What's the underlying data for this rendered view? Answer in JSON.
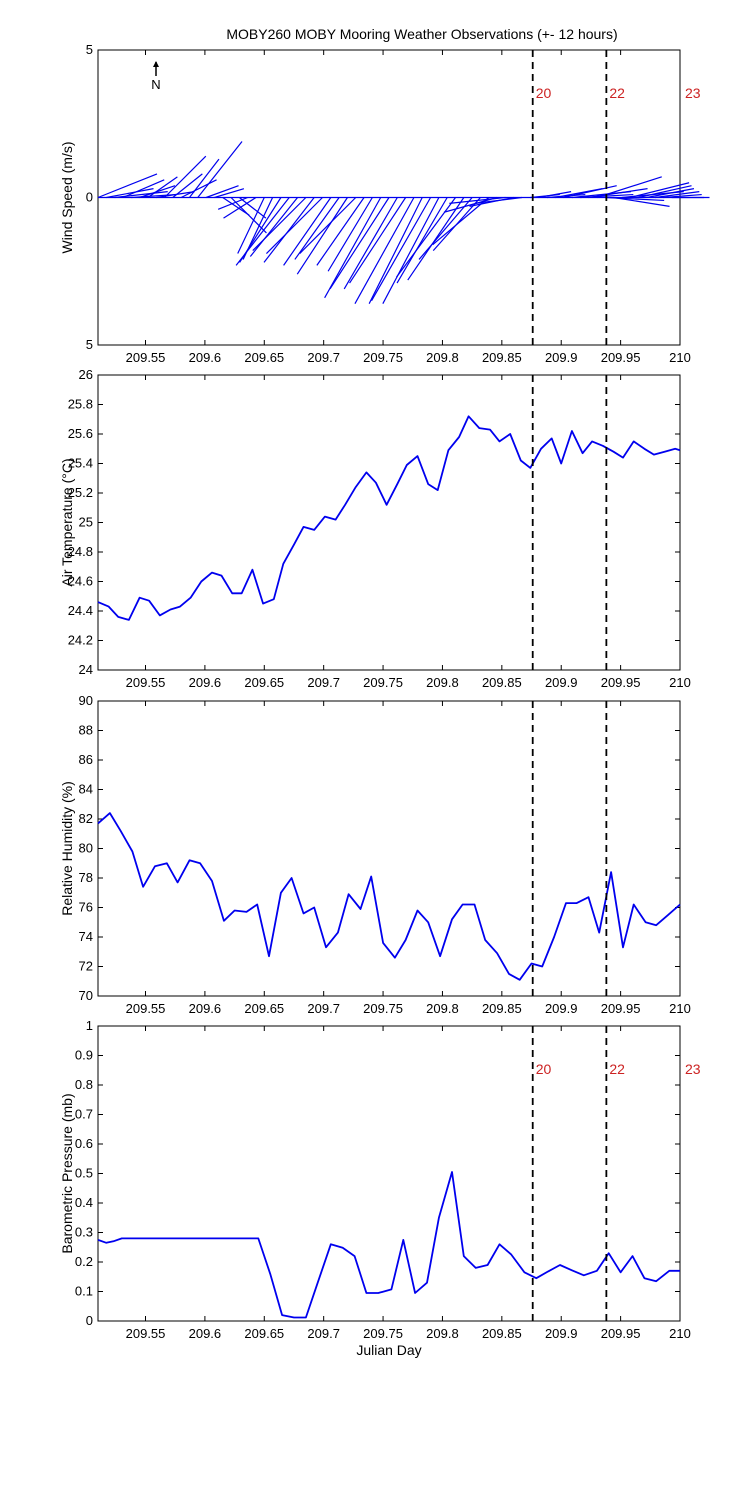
{
  "title": "MOBY260 MOBY Mooring Weather Observations (+- 12 hours)",
  "colors": {
    "series": "#0000ee",
    "marker_text": "#cc2222",
    "axes": "#000000"
  },
  "x_ticks": [
    209.55,
    209.6,
    209.65,
    209.7,
    209.75,
    209.8,
    209.85,
    209.9,
    209.95,
    210
  ],
  "x_tick_labels": [
    "209.55",
    "209.6",
    "209.65",
    "209.7",
    "209.75",
    "209.8",
    "209.85",
    "209.9",
    "209.95",
    "210"
  ],
  "xlim": [
    209.51,
    210
  ],
  "event_lines": [
    209.876,
    209.938
  ],
  "time_markers": [
    {
      "x": 209.876,
      "label": "20"
    },
    {
      "x": 209.938,
      "label": "22"
    },
    {
      "x": 210.0,
      "label": "23"
    }
  ],
  "north_label": "N",
  "chart_data": [
    {
      "type": "vector",
      "ylabel": "Wind Speed (m/s)",
      "xlabel": "",
      "ylim": [
        -5,
        5
      ],
      "y_ticks": [
        -5,
        0,
        5
      ],
      "y_tick_labels": [
        "5",
        "0",
        "5"
      ],
      "grid": false,
      "x": [
        209.51,
        209.517,
        209.524,
        209.531,
        209.538,
        209.545,
        209.552,
        209.559,
        209.566,
        209.573,
        209.58,
        209.587,
        209.594,
        209.601,
        209.608,
        209.615,
        209.622,
        209.629,
        209.636,
        209.643,
        209.65,
        209.657,
        209.664,
        209.671,
        209.678,
        209.685,
        209.692,
        209.699,
        209.706,
        209.713,
        209.72,
        209.727,
        209.734,
        209.741,
        209.748,
        209.755,
        209.762,
        209.769,
        209.776,
        209.783,
        209.79,
        209.797,
        209.804,
        209.811,
        209.818,
        209.825,
        209.832,
        209.839,
        209.846,
        209.853,
        209.86,
        209.867,
        209.874,
        209.881,
        209.888,
        209.895,
        209.902,
        209.909,
        209.916,
        209.923,
        209.93,
        209.937,
        209.944,
        209.951,
        209.958,
        209.965,
        209.972,
        209.979,
        209.986,
        209.993,
        210.0
      ],
      "u": [
        2.0,
        1.6,
        1.8,
        1.4,
        1.5,
        1.2,
        1.0,
        1.3,
        1.4,
        1.0,
        1.2,
        1.0,
        1.5,
        1.1,
        1.0,
        0.9,
        1.2,
        0.9,
        -1.0,
        -1.1,
        -0.9,
        -1.0,
        -1.4,
        -1.8,
        -1.6,
        -1.8,
        -1.7,
        -1.9,
        -1.6,
        -1.5,
        -1.7,
        -1.9,
        -1.6,
        -1.5,
        -1.9,
        -2.0,
        -1.8,
        -1.9,
        -2.0,
        -1.8,
        -2.0,
        -1.9,
        -1.7,
        -2.0,
        -1.9,
        -1.8,
        -1.6,
        -1.9,
        -1.8,
        -1.9,
        -1.5,
        -1.6,
        1.0,
        1.1,
        1.3,
        1.6,
        1.8,
        2.0,
        1.8,
        2.0,
        2.2,
        2.0,
        1.9,
        2.1,
        2.0,
        1.8,
        1.6,
        1.5,
        1.3,
        1.1,
        1.0
      ],
      "v": [
        0.8,
        0.3,
        0.2,
        0.6,
        0.1,
        0.4,
        0.7,
        0.2,
        1.4,
        0.8,
        0.6,
        1.3,
        1.9,
        0.4,
        0.3,
        -0.6,
        -1.2,
        -0.7,
        -0.4,
        -0.7,
        -1.9,
        -2.1,
        -2.2,
        -2.3,
        -2.0,
        -1.8,
        -2.2,
        -1.9,
        -2.3,
        -2.1,
        -2.6,
        -1.9,
        -2.3,
        -2.5,
        -3.4,
        -3.1,
        -3.1,
        -2.9,
        -3.6,
        -3.6,
        -3.5,
        -3.6,
        -2.9,
        -2.7,
        -2.8,
        -2.1,
        -1.8,
        -1.6,
        -0.5,
        -0.2,
        -0.3,
        -0.2,
        0.1,
        0.2,
        0.1,
        0.3,
        0.4,
        0.2,
        0.1,
        0.3,
        0.7,
        -0.1,
        -0.3,
        0.2,
        0.5,
        0.4,
        0.3,
        0.2,
        0.1,
        0.0,
        0.0
      ]
    },
    {
      "type": "line",
      "ylabel": "Air Temperature (°C)",
      "xlabel": "",
      "ylim": [
        24,
        26
      ],
      "y_ticks": [
        24,
        24.2,
        24.4,
        24.6,
        24.8,
        25,
        25.2,
        25.4,
        25.6,
        25.8,
        26
      ],
      "y_tick_labels": [
        "24",
        "24.2",
        "24.4",
        "24.6",
        "24.8",
        "25",
        "25.2",
        "25.4",
        "25.6",
        "25.8",
        "26"
      ],
      "grid": false,
      "series": [
        {
          "x": [
            209.51,
            209.519,
            209.527,
            209.536,
            209.545,
            209.553,
            209.562,
            209.571,
            209.579,
            209.588,
            209.597,
            209.606,
            209.614,
            209.623,
            209.631,
            209.64,
            209.649,
            209.658,
            209.666,
            209.675,
            209.683,
            209.692,
            209.701,
            209.71,
            209.718,
            209.727,
            209.736,
            209.744,
            209.753,
            209.762,
            209.77,
            209.779,
            209.788,
            209.796,
            209.805,
            209.814,
            209.822,
            209.831,
            209.84,
            209.848,
            209.857,
            209.866,
            209.874,
            209.883,
            209.892,
            209.9,
            209.909,
            209.918,
            209.926,
            209.935,
            209.944,
            209.952,
            209.961,
            209.97,
            209.978,
            209.987,
            209.996,
            210.0
          ],
          "values": [
            24.46,
            24.43,
            24.36,
            24.34,
            24.49,
            24.47,
            24.37,
            24.41,
            24.43,
            24.49,
            24.6,
            24.66,
            24.64,
            24.52,
            24.52,
            24.68,
            24.45,
            24.48,
            24.72,
            24.85,
            24.97,
            24.95,
            25.04,
            25.02,
            25.12,
            25.24,
            25.34,
            25.27,
            25.12,
            25.26,
            25.39,
            25.45,
            25.26,
            25.22,
            25.49,
            25.58,
            25.72,
            25.64,
            25.63,
            25.55,
            25.6,
            25.42,
            25.37,
            25.5,
            25.57,
            25.4,
            25.62,
            25.47,
            25.55,
            25.52,
            25.48,
            25.44,
            25.55,
            25.5,
            25.46,
            25.48,
            25.5,
            25.49
          ]
        }
      ]
    },
    {
      "type": "line",
      "ylabel": "Relative Humidity (%)",
      "xlabel": "",
      "ylim": [
        70,
        90
      ],
      "y_ticks": [
        70,
        72,
        74,
        76,
        78,
        80,
        82,
        84,
        86,
        88,
        90
      ],
      "y_tick_labels": [
        "70",
        "72",
        "74",
        "76",
        "78",
        "80",
        "82",
        "84",
        "86",
        "88",
        "90"
      ],
      "grid": false,
      "series": [
        {
          "x": [
            209.51,
            209.52,
            209.529,
            209.539,
            209.548,
            209.558,
            209.568,
            209.577,
            209.587,
            209.596,
            209.606,
            209.616,
            209.625,
            209.635,
            209.644,
            209.654,
            209.664,
            209.673,
            209.683,
            209.692,
            209.702,
            209.712,
            209.721,
            209.731,
            209.74,
            209.75,
            209.76,
            209.769,
            209.779,
            209.788,
            209.798,
            209.808,
            209.817,
            209.827,
            209.836,
            209.846,
            209.856,
            209.865,
            209.875,
            209.884,
            209.894,
            209.904,
            209.913,
            209.923,
            209.932,
            209.942,
            209.952,
            209.961,
            209.971,
            209.98,
            209.99,
            210.0
          ],
          "values": [
            81.7,
            82.4,
            81.2,
            79.8,
            77.4,
            78.8,
            79.0,
            77.7,
            79.2,
            79.0,
            77.8,
            75.1,
            75.8,
            75.7,
            76.2,
            72.7,
            77.0,
            78.0,
            75.6,
            76.0,
            73.3,
            74.3,
            76.9,
            75.9,
            78.1,
            73.6,
            72.6,
            73.8,
            75.8,
            75.0,
            72.7,
            75.2,
            76.2,
            76.2,
            73.8,
            72.9,
            71.5,
            71.1,
            72.2,
            72.0,
            74.0,
            76.3,
            76.3,
            76.7,
            74.3,
            78.4,
            73.3,
            76.2,
            75.0,
            74.8,
            75.5,
            76.2
          ]
        }
      ]
    },
    {
      "type": "line",
      "ylabel": "Barometric Pressure (mb)",
      "xlabel": "Julian Day",
      "ylim": [
        0,
        1
      ],
      "y_ticks": [
        0,
        0.1,
        0.2,
        0.3,
        0.4,
        0.5,
        0.6,
        0.7,
        0.8,
        0.9,
        1
      ],
      "y_tick_labels": [
        "0",
        "0.1",
        "0.2",
        "0.3",
        "0.4",
        "0.5",
        "0.6",
        "0.7",
        "0.8",
        "0.9",
        "1"
      ],
      "grid": false,
      "series": [
        {
          "x": [
            209.51,
            209.517,
            209.523,
            209.53,
            209.645,
            209.655,
            209.665,
            209.675,
            209.685,
            209.695,
            209.706,
            209.716,
            209.726,
            209.736,
            209.746,
            209.757,
            209.767,
            209.777,
            209.787,
            209.797,
            209.808,
            209.818,
            209.828,
            209.838,
            209.848,
            209.858,
            209.869,
            209.879,
            209.889,
            209.899,
            209.909,
            209.919,
            209.93,
            209.94,
            209.95,
            209.96,
            209.97,
            209.98,
            209.991,
            210.0
          ],
          "values": [
            0.275,
            0.265,
            0.27,
            0.28,
            0.28,
            0.16,
            0.02,
            0.012,
            0.012,
            0.13,
            0.26,
            0.248,
            0.22,
            0.095,
            0.095,
            0.107,
            0.275,
            0.095,
            0.13,
            0.35,
            0.505,
            0.22,
            0.18,
            0.19,
            0.26,
            0.225,
            0.165,
            0.145,
            0.168,
            0.19,
            0.172,
            0.155,
            0.17,
            0.23,
            0.165,
            0.22,
            0.145,
            0.135,
            0.17,
            0.17
          ]
        }
      ]
    }
  ]
}
